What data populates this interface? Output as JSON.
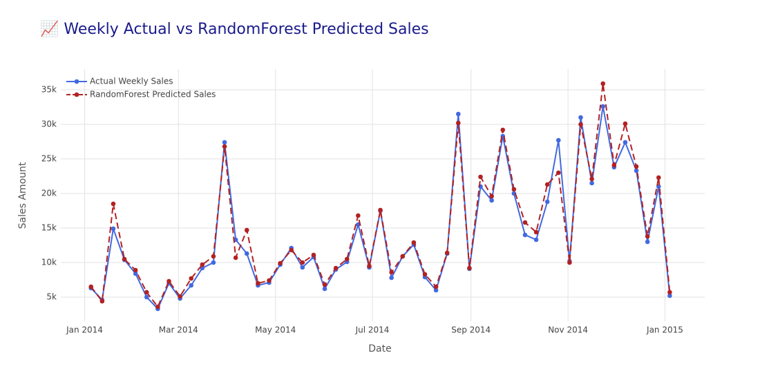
{
  "chart_data": {
    "type": "line",
    "title": "📈 Weekly Actual vs RandomForest Predicted Sales",
    "xlabel": "Date",
    "ylabel": "Sales Amount",
    "x": [
      "2014-01-05",
      "2014-01-12",
      "2014-01-19",
      "2014-01-26",
      "2014-02-02",
      "2014-02-09",
      "2014-02-16",
      "2014-02-23",
      "2014-03-02",
      "2014-03-09",
      "2014-03-16",
      "2014-03-23",
      "2014-03-30",
      "2014-04-06",
      "2014-04-13",
      "2014-04-20",
      "2014-04-27",
      "2014-05-04",
      "2014-05-11",
      "2014-05-18",
      "2014-05-25",
      "2014-06-01",
      "2014-06-08",
      "2014-06-15",
      "2014-06-22",
      "2014-06-29",
      "2014-07-06",
      "2014-07-13",
      "2014-07-20",
      "2014-07-27",
      "2014-08-03",
      "2014-08-10",
      "2014-08-17",
      "2014-08-24",
      "2014-08-31",
      "2014-09-07",
      "2014-09-14",
      "2014-09-21",
      "2014-09-28",
      "2014-10-05",
      "2014-10-12",
      "2014-10-19",
      "2014-10-26",
      "2014-11-02",
      "2014-11-09",
      "2014-11-16",
      "2014-11-23",
      "2014-11-30",
      "2014-12-07",
      "2014-12-14",
      "2014-12-21",
      "2014-12-28",
      "2015-01-04"
    ],
    "series": [
      {
        "name": "Actual Weekly Sales",
        "color": "#4169e1",
        "dash": false,
        "values": [
          6300,
          4600,
          14900,
          10400,
          8400,
          5000,
          3300,
          7000,
          4800,
          6700,
          9200,
          10000,
          27400,
          13300,
          11300,
          6700,
          7100,
          9700,
          12100,
          9300,
          10800,
          6200,
          9000,
          10100,
          15500,
          9300,
          17500,
          7800,
          10900,
          12600,
          7900,
          6000,
          11300,
          31500,
          9100,
          21000,
          19000,
          28300,
          20000,
          14000,
          13300,
          18800,
          27700,
          10200,
          31000,
          21500,
          32600,
          23800,
          27400,
          23300,
          13000,
          21000,
          5200
        ]
      },
      {
        "name": "RandomForest Predicted Sales",
        "color": "#b22222",
        "dash": true,
        "values": [
          6500,
          4400,
          18500,
          10500,
          8900,
          5700,
          3600,
          7300,
          5100,
          7700,
          9700,
          10900,
          26800,
          10700,
          14700,
          7000,
          7400,
          9900,
          11800,
          10000,
          11100,
          6800,
          9200,
          10500,
          16800,
          9500,
          17600,
          8600,
          10900,
          12900,
          8300,
          6500,
          11400,
          30200,
          9200,
          22400,
          19600,
          29200,
          20600,
          15800,
          14400,
          21300,
          23000,
          10000,
          30000,
          22100,
          35900,
          24100,
          30100,
          23900,
          13800,
          22300,
          5700
        ]
      }
    ],
    "xlim": [
      "2013-12-17",
      "2015-01-26"
    ],
    "xticks": [
      {
        "value": "2014-01-01",
        "label": "Jan 2014"
      },
      {
        "value": "2014-03-01",
        "label": "Mar 2014"
      },
      {
        "value": "2014-05-01",
        "label": "May 2014"
      },
      {
        "value": "2014-07-01",
        "label": "Jul 2014"
      },
      {
        "value": "2014-09-01",
        "label": "Sep 2014"
      },
      {
        "value": "2014-11-01",
        "label": "Nov 2014"
      },
      {
        "value": "2015-01-01",
        "label": "Jan 2015"
      }
    ],
    "ylim": [
      1500,
      38000
    ],
    "yticks": [
      {
        "value": 5000,
        "label": "5k"
      },
      {
        "value": 10000,
        "label": "10k"
      },
      {
        "value": 15000,
        "label": "15k"
      },
      {
        "value": 20000,
        "label": "20k"
      },
      {
        "value": 25000,
        "label": "25k"
      },
      {
        "value": 30000,
        "label": "30k"
      },
      {
        "value": 35000,
        "label": "35k"
      }
    ],
    "grid": true,
    "legend": "top-left"
  }
}
